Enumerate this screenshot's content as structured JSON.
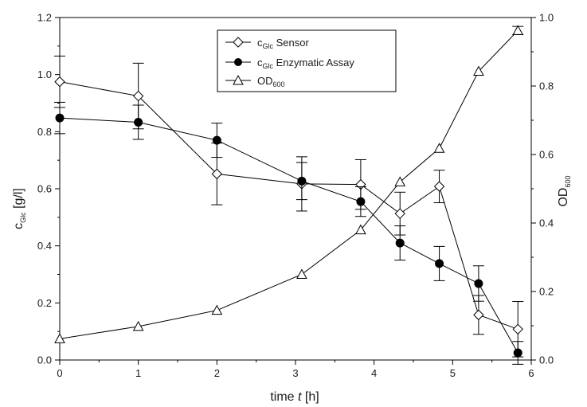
{
  "chart_data": {
    "type": "line",
    "xlabel": {
      "main": "time ",
      "italic": "t",
      "unit": " [h]"
    },
    "ylabel_left": {
      "main": "c",
      "sub": "Glc",
      "unit": " [g/l]"
    },
    "ylabel_right": {
      "main": "OD",
      "sub": "600"
    },
    "xlim": [
      0,
      6
    ],
    "ylim_left": [
      0,
      1.2
    ],
    "ylim_right": [
      0,
      1.0
    ],
    "x_ticks": [
      "0",
      "1",
      "2",
      "3",
      "4",
      "5",
      "6"
    ],
    "y_left_ticks": [
      "0.0",
      "0.2",
      "0.4",
      "0.6",
      "0.8",
      "1.0",
      "1.2"
    ],
    "y_right_ticks": [
      "0.0",
      "0.2",
      "0.4",
      "0.6",
      "0.8",
      "1.0"
    ],
    "legend_position": "top-center",
    "series": [
      {
        "name_main": "c",
        "name_sub": "Glc",
        "name_rest": " Sensor",
        "marker": "diamond-open",
        "axis": "left",
        "x": [
          0,
          1,
          2,
          3.08,
          3.83,
          4.33,
          4.83,
          5.33,
          5.83
        ],
        "y": [
          0.975,
          0.925,
          0.652,
          0.617,
          0.615,
          0.513,
          0.608,
          0.158,
          0.108
        ],
        "err": [
          0.09,
          0.115,
          0.108,
          0.095,
          0.087,
          0.075,
          0.057,
          0.068,
          0.097
        ]
      },
      {
        "name_main": "c",
        "name_sub": "Glc",
        "name_rest": " Enzymatic Assay",
        "marker": "circle-filled",
        "axis": "left",
        "x": [
          0,
          1,
          2,
          3.08,
          3.83,
          4.33,
          4.83,
          5.33,
          5.83
        ],
        "y": [
          0.848,
          0.833,
          0.77,
          0.627,
          0.555,
          0.41,
          0.338,
          0.268,
          0.025
        ],
        "err": [
          0.055,
          0.06,
          0.06,
          0.065,
          0.052,
          0.06,
          0.06,
          0.062,
          0.04
        ]
      },
      {
        "name_main": "OD",
        "name_sub": "600",
        "name_rest": "",
        "marker": "triangle-open",
        "axis": "right",
        "x": [
          0,
          1,
          2,
          3.08,
          3.83,
          4.33,
          4.83,
          5.33,
          5.83
        ],
        "y": [
          0.062,
          0.098,
          0.145,
          0.25,
          0.38,
          0.52,
          0.618,
          0.843,
          0.962
        ],
        "err": [
          0,
          0,
          0,
          0,
          0,
          0,
          0,
          0,
          0.012
        ]
      }
    ]
  }
}
